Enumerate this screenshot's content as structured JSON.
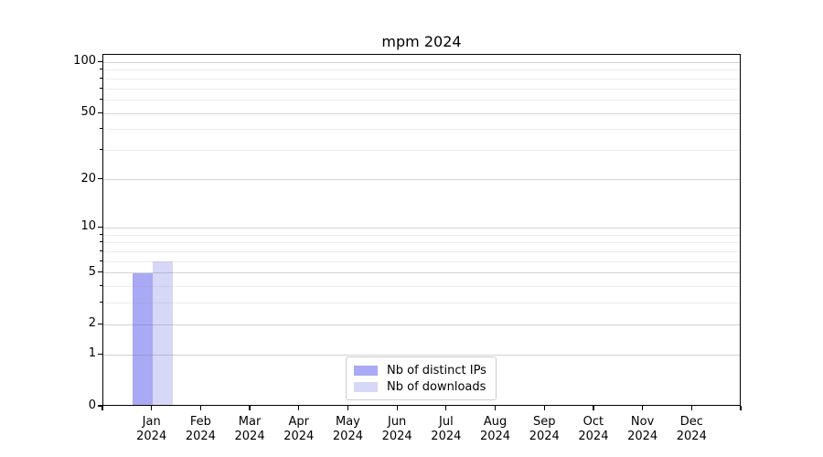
{
  "chart_data": {
    "type": "bar",
    "title": "mpm 2024",
    "x_categories": [
      {
        "month": "Jan",
        "year": "2024"
      },
      {
        "month": "Feb",
        "year": "2024"
      },
      {
        "month": "Mar",
        "year": "2024"
      },
      {
        "month": "Apr",
        "year": "2024"
      },
      {
        "month": "May",
        "year": "2024"
      },
      {
        "month": "Jun",
        "year": "2024"
      },
      {
        "month": "Jul",
        "year": "2024"
      },
      {
        "month": "Aug",
        "year": "2024"
      },
      {
        "month": "Sep",
        "year": "2024"
      },
      {
        "month": "Oct",
        "year": "2024"
      },
      {
        "month": "Nov",
        "year": "2024"
      },
      {
        "month": "Dec",
        "year": "2024"
      }
    ],
    "series": [
      {
        "name": "Nb of distinct IPs",
        "color": "#a9a9f5",
        "values": [
          5,
          0,
          0,
          0,
          0,
          0,
          0,
          0,
          0,
          0,
          0,
          0
        ]
      },
      {
        "name": "Nb of downloads",
        "color": "#d7d7f8",
        "values": [
          6,
          0,
          0,
          0,
          0,
          0,
          0,
          0,
          0,
          0,
          0,
          0
        ]
      }
    ],
    "y_axis": {
      "scale": "log1p",
      "major_ticks": [
        0,
        1,
        2,
        5,
        10,
        20,
        50,
        100
      ],
      "minor_ticks": [
        3,
        4,
        6,
        7,
        8,
        9,
        30,
        40,
        60,
        70,
        80,
        90
      ],
      "top_value": 111
    },
    "legend": {
      "position": "lower center"
    },
    "grid": true,
    "colors": {
      "spine": "#000000",
      "major_grid": "#d6d6d6",
      "minor_grid": "#ececec",
      "legend_border": "#cccccc"
    }
  }
}
